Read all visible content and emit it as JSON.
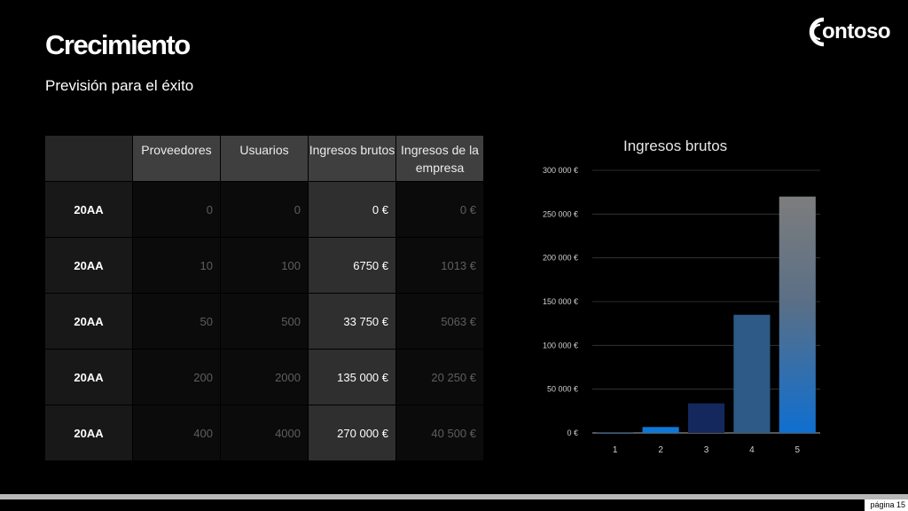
{
  "slide": {
    "title": "Crecimiento",
    "subtitle": "Previsión para el éxito",
    "logo_text": "ontoso",
    "page_label": "página 15"
  },
  "table": {
    "headers": [
      "",
      "Proveedores",
      "Usuarios",
      "Ingresos brutos",
      "Ingresos de la empresa"
    ],
    "rows": [
      [
        "20AA",
        "0",
        "0",
        "0 €",
        "0 €"
      ],
      [
        "20AA",
        "10",
        "100",
        "6750 €",
        "1013 €"
      ],
      [
        "20AA",
        "50",
        "500",
        "33 750 €",
        "5063 €"
      ],
      [
        "20AA",
        "200",
        "2000",
        "135 000 €",
        "20 250 €"
      ],
      [
        "20AA",
        "400",
        "4000",
        "270 000 €",
        "40 500 €"
      ]
    ]
  },
  "colors": {
    "background": "#000000",
    "header_cell": "#3f3f3f",
    "revenue_cell": "#2f2f2f",
    "bar_colors": [
      "#0f68c4",
      "#0e78d8",
      "#15285e",
      "#2d5a86",
      "#7d7d7d"
    ],
    "grid": "#3a3a3a"
  },
  "chart_data": {
    "type": "bar",
    "title": "Ingresos brutos",
    "categories": [
      "1",
      "2",
      "3",
      "4",
      "5"
    ],
    "values": [
      0,
      6750,
      33750,
      135000,
      270000
    ],
    "ylim": [
      0,
      300000
    ],
    "yticks": [
      0,
      50000,
      100000,
      150000,
      200000,
      250000,
      300000
    ],
    "ytick_labels": [
      "0 €",
      "50 000 €",
      "100 000 €",
      "150 000 €",
      "200 000 €",
      "250 000 €",
      "300 000 €"
    ],
    "xlabel": "",
    "ylabel": "",
    "grid": true,
    "legend": "none"
  }
}
